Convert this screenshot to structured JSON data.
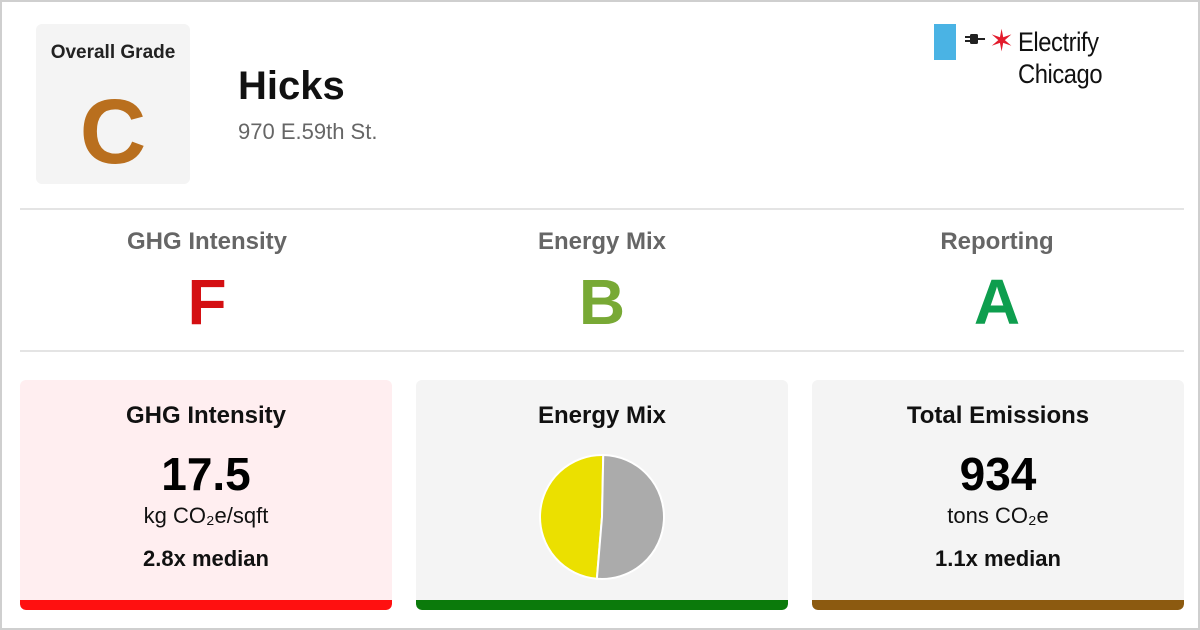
{
  "colors": {
    "grade_c": "#b96f1e",
    "grade_f": "#d40f12",
    "grade_b": "#78a935",
    "grade_a": "#0e9e4e",
    "ghg_card_bg": "#ffeef0",
    "neutral_card_bg": "#f4f4f4",
    "ghg_bar": "#ff1010",
    "energy_bar": "#0b7a0b",
    "emissions_bar": "#8c5a10",
    "pie_gas": "#ebe000",
    "pie_electric": "#ababab"
  },
  "overall": {
    "label": "Overall Grade",
    "grade": "C"
  },
  "building": {
    "name": "Hicks",
    "address": "970 E.59th St."
  },
  "logo": {
    "text": "Electrify Chicago",
    "flag_icon": "chicago-flag-stripe-icon",
    "plug_icon": "plug-icon",
    "star_icon": "red-star-icon"
  },
  "sub_grades": [
    {
      "label": "GHG Intensity",
      "grade": "F"
    },
    {
      "label": "Energy Mix",
      "grade": "B"
    },
    {
      "label": "Reporting",
      "grade": "A"
    }
  ],
  "cards": {
    "ghg": {
      "title": "GHG Intensity",
      "value": "17.5",
      "unit": "kg CO₂e/sqft",
      "median": "2.8x median"
    },
    "energy": {
      "title": "Energy Mix"
    },
    "emissions": {
      "title": "Total Emissions",
      "value": "934",
      "unit": "tons CO₂e",
      "median": "1.1x median"
    }
  },
  "chart_data": {
    "type": "pie",
    "title": "",
    "slices": [
      {
        "value": 0.49,
        "color": "#ebe000"
      },
      {
        "value": 0.51,
        "color": "#ababab"
      }
    ]
  }
}
